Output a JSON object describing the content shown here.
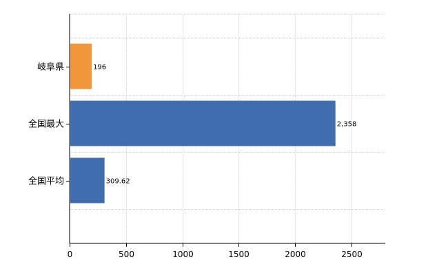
{
  "chart_data": {
    "type": "bar",
    "orientation": "horizontal",
    "title": "",
    "xlabel": "",
    "ylabel": "",
    "categories": [
      "岐阜県",
      "全国最大",
      "全国平均"
    ],
    "values": [
      196,
      2358,
      309.62
    ],
    "value_labels": [
      "196",
      "2,358",
      "309.62"
    ],
    "bar_colors": [
      "#F0973A",
      "#3F6DAE",
      "#3F6DAE"
    ],
    "xlim": [
      0,
      2800
    ],
    "xticks": [
      0,
      500,
      1000,
      1500,
      2000,
      2500
    ],
    "xtick_labels": [
      "0",
      "500",
      "1000",
      "1500",
      "2000",
      "2500"
    ],
    "grid": true
  }
}
